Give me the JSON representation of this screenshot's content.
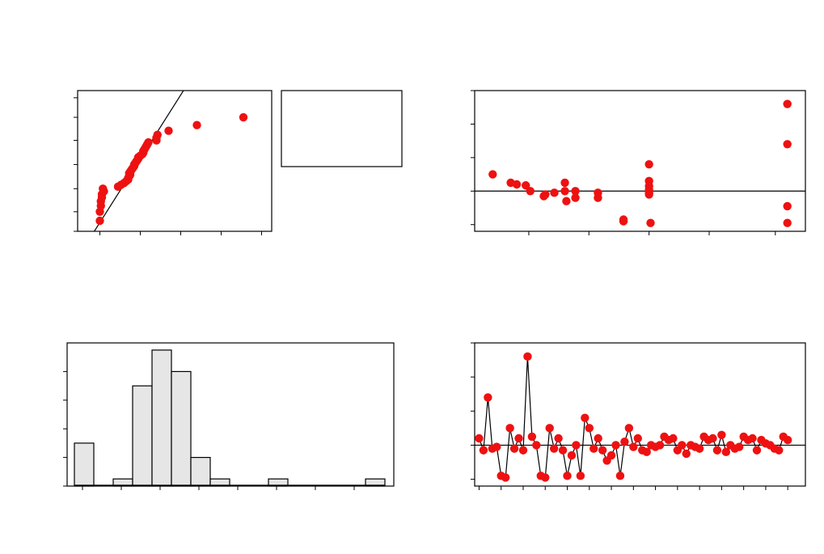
{
  "colors": {
    "point": "#ee1111",
    "axis": "#000000",
    "bar_fill": "#e6e6e6",
    "background": "#ffffff"
  },
  "legend_box_text": "",
  "chart_data": [
    {
      "id": "normal-probability-plot",
      "type": "scatter",
      "title": "",
      "xlabel": "",
      "ylabel": "",
      "xlim": [
        -26,
        70
      ],
      "ylim": [
        1,
        99.5
      ],
      "y_scale": "normal-probability",
      "reference_line": {
        "from": [
          -20,
          0.5
        ],
        "to": [
          31,
          99.9
        ]
      },
      "points": [
        [
          -15,
          2.5
        ],
        [
          -15,
          5
        ],
        [
          -14.5,
          7.5
        ],
        [
          -14.5,
          10
        ],
        [
          -14,
          12.5
        ],
        [
          -14,
          15
        ],
        [
          -13,
          17.5
        ],
        [
          -13.5,
          20
        ],
        [
          -6,
          22
        ],
        [
          -4.5,
          24
        ],
        [
          -3,
          26
        ],
        [
          -2,
          28
        ],
        [
          -1,
          30
        ],
        [
          -1,
          32
        ],
        [
          -0.5,
          34
        ],
        [
          0,
          36
        ],
        [
          -0.5,
          38
        ],
        [
          0,
          40
        ],
        [
          0.5,
          42
        ],
        [
          1,
          44
        ],
        [
          1.5,
          46
        ],
        [
          2,
          48
        ],
        [
          2,
          50
        ],
        [
          2.5,
          52
        ],
        [
          3,
          54
        ],
        [
          3.5,
          56
        ],
        [
          4,
          58
        ],
        [
          4,
          60
        ],
        [
          5,
          62
        ],
        [
          6,
          64
        ],
        [
          6.5,
          66
        ],
        [
          6.5,
          68
        ],
        [
          7,
          70
        ],
        [
          7.5,
          72
        ],
        [
          8,
          74
        ],
        [
          8.5,
          76
        ],
        [
          9,
          78
        ],
        [
          13,
          80
        ],
        [
          13,
          82.5
        ],
        [
          13.5,
          85
        ],
        [
          19,
          88
        ],
        [
          33,
          91.5
        ],
        [
          56,
          95
        ]
      ]
    },
    {
      "id": "residuals-vs-fits",
      "type": "scatter",
      "title": "",
      "xlabel": "",
      "ylabel": "",
      "xlim": [
        0,
        110
      ],
      "ylim": [
        -12,
        30
      ],
      "reference_line_y": 0,
      "points": [
        [
          6,
          5
        ],
        [
          12,
          2.5
        ],
        [
          14,
          2
        ],
        [
          17,
          1.7
        ],
        [
          18.5,
          0
        ],
        [
          23,
          -1.5
        ],
        [
          23.5,
          -1
        ],
        [
          26.5,
          -0.5
        ],
        [
          30,
          2.5
        ],
        [
          30,
          0
        ],
        [
          30.5,
          -3
        ],
        [
          33.5,
          -2
        ],
        [
          33.5,
          0
        ],
        [
          41,
          -2
        ],
        [
          41,
          -0.5
        ],
        [
          49.5,
          -9
        ],
        [
          49.5,
          -8.5
        ],
        [
          58,
          8
        ],
        [
          58,
          3
        ],
        [
          58,
          1.5
        ],
        [
          58,
          0.5
        ],
        [
          58,
          -0.5
        ],
        [
          58,
          -1
        ],
        [
          58.5,
          -9.5
        ],
        [
          104,
          26
        ],
        [
          104,
          14
        ],
        [
          104,
          -4.5
        ],
        [
          104,
          -9.5
        ]
      ]
    },
    {
      "id": "histogram-of-residuals",
      "type": "bar",
      "title": "",
      "xlabel": "",
      "ylabel": "",
      "ylim": [
        0,
        20
      ],
      "bin_start": -22.5,
      "bin_width": 5,
      "values": [
        6,
        0,
        1,
        14,
        19,
        16,
        4,
        1,
        0,
        0,
        1,
        0,
        0,
        0,
        0,
        1
      ]
    },
    {
      "id": "residuals-vs-order",
      "type": "line",
      "title": "",
      "xlabel": "",
      "ylabel": "",
      "xlim": [
        0,
        75
      ],
      "ylim": [
        -12,
        30
      ],
      "reference_line_y": 0,
      "points": [
        [
          1,
          2
        ],
        [
          2,
          -1.5
        ],
        [
          3,
          14
        ],
        [
          4,
          -1
        ],
        [
          5,
          -0.5
        ],
        [
          6,
          -9
        ],
        [
          7,
          -9.5
        ],
        [
          8,
          5
        ],
        [
          9,
          -1
        ],
        [
          10,
          2
        ],
        [
          11,
          -1.5
        ],
        [
          12,
          26
        ],
        [
          13,
          2.5
        ],
        [
          14,
          0
        ],
        [
          15,
          -9
        ],
        [
          16,
          -9.5
        ],
        [
          17,
          5
        ],
        [
          18,
          -1
        ],
        [
          19,
          2
        ],
        [
          20,
          -1.5
        ],
        [
          21,
          -9
        ],
        [
          22,
          -3
        ],
        [
          23,
          0
        ],
        [
          24,
          -9
        ],
        [
          25,
          8
        ],
        [
          26,
          5
        ],
        [
          27,
          -1
        ],
        [
          28,
          2
        ],
        [
          29,
          -1.5
        ],
        [
          30,
          -4.5
        ],
        [
          31,
          -3
        ],
        [
          32,
          0
        ],
        [
          33,
          -9
        ],
        [
          34,
          1
        ],
        [
          35,
          5
        ],
        [
          36,
          -0.5
        ],
        [
          37,
          2
        ],
        [
          38,
          -1.5
        ],
        [
          39,
          -2
        ],
        [
          40,
          0
        ],
        [
          41,
          -0.5
        ],
        [
          42,
          0
        ],
        [
          43,
          2.5
        ],
        [
          44,
          1.5
        ],
        [
          45,
          2
        ],
        [
          46,
          -1.5
        ],
        [
          47,
          0
        ],
        [
          48,
          -2.5
        ],
        [
          49,
          0
        ],
        [
          50,
          -0.5
        ],
        [
          51,
          -1
        ],
        [
          52,
          2.5
        ],
        [
          53,
          1.5
        ],
        [
          54,
          2
        ],
        [
          55,
          -1.5
        ],
        [
          56,
          3
        ],
        [
          57,
          -2
        ],
        [
          58,
          0
        ],
        [
          59,
          -1
        ],
        [
          60,
          -0.5
        ],
        [
          61,
          2.5
        ],
        [
          62,
          1.5
        ],
        [
          63,
          2
        ],
        [
          64,
          -1.5
        ],
        [
          65,
          1.5
        ],
        [
          66,
          0.5
        ],
        [
          67,
          0
        ],
        [
          68,
          -1
        ],
        [
          69,
          -1.5
        ],
        [
          70,
          2.5
        ],
        [
          71,
          1.5
        ]
      ]
    }
  ]
}
